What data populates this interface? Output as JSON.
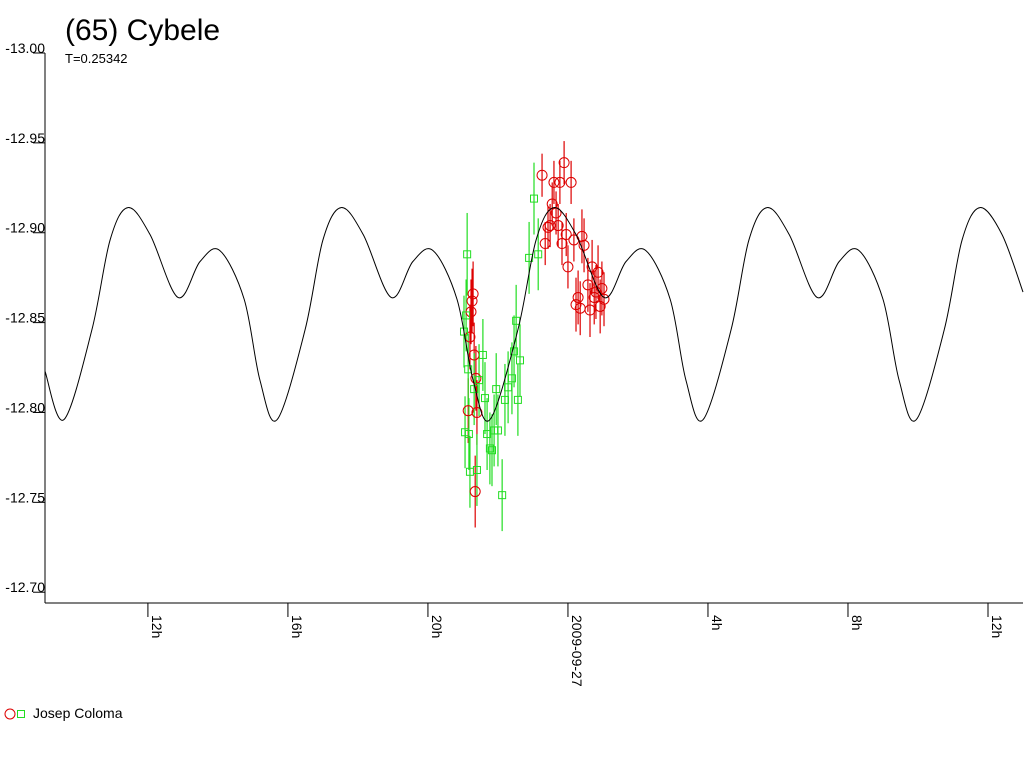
{
  "chart_data": {
    "type": "scatter",
    "title": "(65) Cybele",
    "subtitle": "T=0.25342",
    "legend_label": "Josep Coloma",
    "xlim": [
      -14.94,
      13.0
    ],
    "xticks": [
      {
        "value": -12,
        "label": "12h"
      },
      {
        "value": -8,
        "label": "16h"
      },
      {
        "value": -4,
        "label": "20h"
      },
      {
        "value": 0,
        "label": "2009-09-27"
      },
      {
        "value": 4,
        "label": "4h"
      },
      {
        "value": 8,
        "label": "8h"
      },
      {
        "value": 12,
        "label": "12h"
      }
    ],
    "ylim": [
      -12.694,
      -13.0
    ],
    "yticks": [
      {
        "value": -13.0,
        "label": "-13.00"
      },
      -12.95,
      {
        "value": -12.9,
        "label": "-12.90"
      },
      -12.85,
      {
        "value": -12.8,
        "label": "-12.80"
      },
      -12.75,
      {
        "value": -12.7,
        "label": "-12.70"
      }
    ],
    "model": {
      "color": "#000000",
      "x": [
        -14.94,
        -14.4,
        -13.6,
        -13.08,
        -12.57,
        -11.94,
        -11.14,
        -10.51,
        -9.94,
        -9.25,
        -8.8,
        -8.31,
        -7.51,
        -7.0,
        -6.48,
        -5.85,
        -5.05,
        -4.43,
        -3.85,
        -3.17,
        -2.71,
        -2.23,
        -1.43,
        -0.91,
        -0.4,
        0.23,
        1.03,
        1.66,
        2.23,
        2.92,
        3.37,
        3.86,
        4.66,
        5.17,
        5.69,
        6.32,
        7.12,
        7.75,
        8.32,
        9.0,
        9.46,
        9.95,
        10.75,
        11.26,
        11.77,
        12.4,
        13.0
      ],
      "values": [
        -12.823,
        -12.796,
        -12.846,
        -12.896,
        -12.914,
        -12.899,
        -12.864,
        -12.884,
        -12.89,
        -12.863,
        -12.818,
        -12.796,
        -12.846,
        -12.896,
        -12.914,
        -12.899,
        -12.864,
        -12.884,
        -12.89,
        -12.863,
        -12.818,
        -12.796,
        -12.846,
        -12.896,
        -12.914,
        -12.899,
        -12.864,
        -12.884,
        -12.89,
        -12.863,
        -12.818,
        -12.796,
        -12.846,
        -12.896,
        -12.914,
        -12.899,
        -12.864,
        -12.884,
        -12.89,
        -12.863,
        -12.818,
        -12.796,
        -12.846,
        -12.896,
        -12.914,
        -12.899,
        -12.867
      ]
    },
    "series": [
      {
        "color": "#dd0000",
        "marker": "circle",
        "x": [
          -2.85,
          -2.8,
          -2.77,
          -2.74,
          -2.71,
          -2.68,
          -2.63,
          -2.65,
          -2.6,
          -0.74,
          -0.65,
          -0.57,
          -0.51,
          -0.45,
          -0.4,
          -0.34,
          -0.28,
          -0.23,
          -0.17,
          -0.11,
          -0.05,
          0.0,
          0.09,
          0.17,
          0.23,
          0.29,
          0.35,
          0.4,
          0.46,
          0.57,
          0.63,
          0.69,
          0.75,
          0.8,
          0.86,
          0.92,
          0.97,
          1.03
        ],
        "values": [
          -12.801,
          -12.842,
          -12.856,
          -12.862,
          -12.866,
          -12.832,
          -12.819,
          -12.756,
          -12.8,
          -12.932,
          -12.894,
          -12.903,
          -12.904,
          -12.916,
          -12.928,
          -12.911,
          -12.904,
          -12.928,
          -12.894,
          -12.939,
          -12.899,
          -12.881,
          -12.928,
          -12.896,
          -12.86,
          -12.864,
          -12.858,
          -12.898,
          -12.893,
          -12.871,
          -12.857,
          -12.881,
          -12.864,
          -12.867,
          -12.878,
          -12.859,
          -12.869,
          -12.863
        ],
        "errors": [
          0.018,
          0.018,
          0.018,
          0.018,
          0.018,
          0.018,
          0.018,
          0.02,
          0.018,
          0.012,
          0.012,
          0.012,
          0.012,
          0.012,
          0.012,
          0.012,
          0.012,
          0.012,
          0.012,
          0.012,
          0.012,
          0.012,
          0.012,
          0.012,
          0.015,
          0.015,
          0.015,
          0.015,
          0.015,
          0.015,
          0.015,
          0.015,
          0.015,
          0.015,
          0.015,
          0.015,
          0.015,
          0.015
        ]
      },
      {
        "color": "#22dd22",
        "marker": "square",
        "x": [
          -2.88,
          -2.91,
          -2.97,
          -2.85,
          -2.94,
          -2.83,
          -2.8,
          -2.6,
          -2.68,
          -2.54,
          -2.43,
          -2.37,
          -2.31,
          -2.23,
          -2.17,
          -2.11,
          -2.05,
          -2.0,
          -1.88,
          -1.8,
          -1.71,
          -1.6,
          -1.54,
          -1.48,
          -1.37,
          -1.43,
          -1.11,
          -0.97,
          -0.85
        ],
        "values": [
          -12.888,
          -12.854,
          -12.845,
          -12.824,
          -12.789,
          -12.788,
          -12.767,
          -12.768,
          -12.813,
          -12.818,
          -12.832,
          -12.808,
          -12.788,
          -12.78,
          -12.779,
          -12.79,
          -12.813,
          -12.79,
          -12.754,
          -12.807,
          -12.814,
          -12.819,
          -12.834,
          -12.851,
          -12.829,
          -12.807,
          -12.886,
          -12.919,
          -12.888
        ],
        "errors": [
          0.023,
          0.02,
          0.02,
          0.02,
          0.02,
          0.02,
          0.02,
          0.02,
          0.02,
          0.02,
          0.02,
          0.02,
          0.02,
          0.02,
          0.02,
          0.02,
          0.02,
          0.02,
          0.02,
          0.02,
          0.02,
          0.02,
          0.02,
          0.02,
          0.02,
          0.02,
          0.02,
          0.02,
          0.02
        ]
      }
    ]
  }
}
